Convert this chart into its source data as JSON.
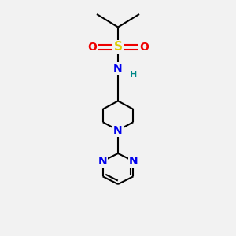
{
  "bg_color": "#f2f2f2",
  "atom_colors": {
    "C": "#000000",
    "N": "#0000ee",
    "S": "#ddcc00",
    "O": "#ee0000",
    "H": "#008888"
  },
  "bond_color": "#000000",
  "bond_width": 1.5,
  "figsize": [
    3.0,
    3.0
  ],
  "dpi": 100
}
